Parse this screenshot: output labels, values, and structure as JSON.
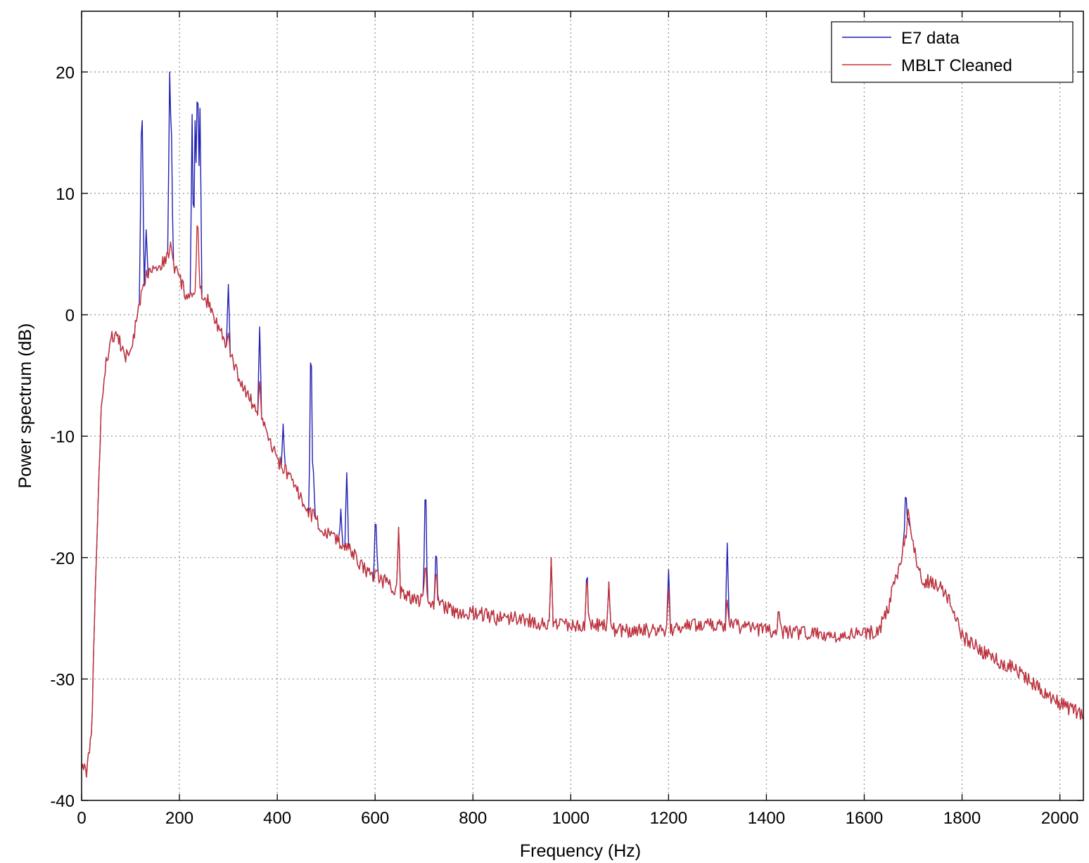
{
  "chart_data": {
    "type": "line",
    "title": "",
    "xlabel": "Frequency (Hz)",
    "ylabel": "Power spectrum (dB)",
    "xlim": [
      0,
      2048
    ],
    "ylim": [
      -40,
      25
    ],
    "x_ticks": [
      0,
      200,
      400,
      600,
      800,
      1000,
      1200,
      1400,
      1600,
      1800,
      2000
    ],
    "y_ticks": [
      -40,
      -30,
      -20,
      -10,
      0,
      10,
      20
    ],
    "x_tick_labels": [
      "0",
      "200",
      "400",
      "600",
      "800",
      "1000",
      "1200",
      "1400",
      "1600",
      "1800",
      "2000"
    ],
    "y_tick_labels": [
      "-40",
      "-30",
      "-20",
      "-10",
      "0",
      "10",
      "20"
    ],
    "grid": true,
    "legend_position": "top-right",
    "series": [
      {
        "name": "E7 data",
        "color": "#1f1fb4",
        "baseline": [
          [
            0,
            -37
          ],
          [
            10,
            -37.5
          ],
          [
            20,
            -35
          ],
          [
            30,
            -20
          ],
          [
            40,
            -8
          ],
          [
            50,
            -4
          ],
          [
            60,
            -2
          ],
          [
            70,
            -1.5
          ],
          [
            80,
            -2.5
          ],
          [
            90,
            -3.5
          ],
          [
            100,
            -3
          ],
          [
            110,
            -1
          ],
          [
            120,
            1
          ],
          [
            130,
            3
          ],
          [
            140,
            4
          ],
          [
            150,
            4
          ],
          [
            160,
            4
          ],
          [
            170,
            4.5
          ],
          [
            180,
            5
          ],
          [
            190,
            4
          ],
          [
            200,
            3
          ],
          [
            210,
            2
          ],
          [
            220,
            1
          ],
          [
            230,
            2
          ],
          [
            240,
            2
          ],
          [
            250,
            1.5
          ],
          [
            260,
            1
          ],
          [
            270,
            0
          ],
          [
            280,
            -1
          ],
          [
            290,
            -2
          ],
          [
            300,
            -3
          ],
          [
            310,
            -4
          ],
          [
            320,
            -5
          ],
          [
            330,
            -6
          ],
          [
            340,
            -6.5
          ],
          [
            350,
            -7.5
          ],
          [
            360,
            -8
          ],
          [
            370,
            -9
          ],
          [
            380,
            -10
          ],
          [
            390,
            -11
          ],
          [
            400,
            -12
          ],
          [
            420,
            -13
          ],
          [
            440,
            -14.5
          ],
          [
            460,
            -16
          ],
          [
            480,
            -17
          ],
          [
            500,
            -18
          ],
          [
            520,
            -18.5
          ],
          [
            540,
            -19
          ],
          [
            560,
            -20
          ],
          [
            580,
            -21
          ],
          [
            600,
            -21.5
          ],
          [
            620,
            -22
          ],
          [
            640,
            -22.5
          ],
          [
            660,
            -23
          ],
          [
            680,
            -23.5
          ],
          [
            700,
            -23.5
          ],
          [
            720,
            -24
          ],
          [
            740,
            -24
          ],
          [
            760,
            -24.5
          ],
          [
            800,
            -24.5
          ],
          [
            850,
            -25
          ],
          [
            900,
            -25
          ],
          [
            950,
            -25.5
          ],
          [
            1000,
            -25.5
          ],
          [
            1050,
            -25.5
          ],
          [
            1100,
            -26
          ],
          [
            1150,
            -26
          ],
          [
            1200,
            -26
          ],
          [
            1250,
            -25.5
          ],
          [
            1300,
            -25.5
          ],
          [
            1350,
            -25.7
          ],
          [
            1400,
            -26
          ],
          [
            1450,
            -26.2
          ],
          [
            1500,
            -26.3
          ],
          [
            1550,
            -26.5
          ],
          [
            1600,
            -26.3
          ],
          [
            1630,
            -26
          ],
          [
            1650,
            -24
          ],
          [
            1660,
            -22
          ],
          [
            1670,
            -21
          ],
          [
            1680,
            -19
          ],
          [
            1690,
            -17
          ],
          [
            1700,
            -19
          ],
          [
            1710,
            -21
          ],
          [
            1720,
            -22
          ],
          [
            1740,
            -22
          ],
          [
            1760,
            -22.5
          ],
          [
            1780,
            -24
          ],
          [
            1800,
            -26.5
          ],
          [
            1850,
            -28
          ],
          [
            1900,
            -29
          ],
          [
            1950,
            -30.5
          ],
          [
            2000,
            -32
          ],
          [
            2048,
            -33
          ]
        ],
        "peaks": [
          [
            122,
            13.5
          ],
          [
            124,
            16
          ],
          [
            132,
            7
          ],
          [
            180,
            20
          ],
          [
            183,
            18
          ],
          [
            226,
            16.5
          ],
          [
            232,
            16
          ],
          [
            237,
            22.6
          ],
          [
            242,
            17
          ],
          [
            300,
            2.5
          ],
          [
            364,
            -1
          ],
          [
            412,
            -9
          ],
          [
            469,
            0
          ],
          [
            474,
            -13
          ],
          [
            530,
            -16
          ],
          [
            542,
            -13
          ],
          [
            601,
            -16
          ],
          [
            648,
            -17.5
          ],
          [
            703,
            -12.5
          ],
          [
            725,
            -18.5
          ],
          [
            960,
            -20
          ],
          [
            1033,
            -20.5
          ],
          [
            1078,
            -22
          ],
          [
            1200,
            -21
          ],
          [
            1320,
            -18.8
          ],
          [
            1425,
            -24
          ],
          [
            1685,
            -14
          ]
        ]
      },
      {
        "name": "MBLT Cleaned",
        "color": "#c83232",
        "baseline": [
          [
            0,
            -37
          ],
          [
            10,
            -37.5
          ],
          [
            20,
            -35
          ],
          [
            30,
            -20
          ],
          [
            40,
            -8
          ],
          [
            50,
            -4
          ],
          [
            60,
            -2
          ],
          [
            70,
            -1.5
          ],
          [
            80,
            -2.5
          ],
          [
            90,
            -3.5
          ],
          [
            100,
            -3
          ],
          [
            110,
            -1
          ],
          [
            120,
            1
          ],
          [
            130,
            3
          ],
          [
            140,
            4
          ],
          [
            150,
            4
          ],
          [
            160,
            4
          ],
          [
            170,
            4.5
          ],
          [
            180,
            5
          ],
          [
            190,
            4
          ],
          [
            200,
            3
          ],
          [
            210,
            2
          ],
          [
            220,
            1
          ],
          [
            230,
            2
          ],
          [
            240,
            2
          ],
          [
            250,
            1.5
          ],
          [
            260,
            1
          ],
          [
            270,
            0
          ],
          [
            280,
            -1
          ],
          [
            290,
            -2
          ],
          [
            300,
            -3
          ],
          [
            310,
            -4
          ],
          [
            320,
            -5
          ],
          [
            330,
            -6
          ],
          [
            340,
            -6.5
          ],
          [
            350,
            -7.5
          ],
          [
            360,
            -8
          ],
          [
            370,
            -9
          ],
          [
            380,
            -10
          ],
          [
            390,
            -11
          ],
          [
            400,
            -12
          ],
          [
            420,
            -13
          ],
          [
            440,
            -14.5
          ],
          [
            460,
            -16
          ],
          [
            480,
            -17
          ],
          [
            500,
            -18
          ],
          [
            520,
            -18.5
          ],
          [
            540,
            -19
          ],
          [
            560,
            -20
          ],
          [
            580,
            -21
          ],
          [
            600,
            -21.5
          ],
          [
            620,
            -22
          ],
          [
            640,
            -22.5
          ],
          [
            660,
            -23
          ],
          [
            680,
            -23.5
          ],
          [
            700,
            -23.5
          ],
          [
            720,
            -24
          ],
          [
            740,
            -24
          ],
          [
            760,
            -24.5
          ],
          [
            800,
            -24.5
          ],
          [
            850,
            -25
          ],
          [
            900,
            -25
          ],
          [
            950,
            -25.5
          ],
          [
            1000,
            -25.5
          ],
          [
            1050,
            -25.5
          ],
          [
            1100,
            -26
          ],
          [
            1150,
            -26
          ],
          [
            1200,
            -26
          ],
          [
            1250,
            -25.5
          ],
          [
            1300,
            -25.5
          ],
          [
            1350,
            -25.7
          ],
          [
            1400,
            -26
          ],
          [
            1450,
            -26.2
          ],
          [
            1500,
            -26.3
          ],
          [
            1550,
            -26.5
          ],
          [
            1600,
            -26.3
          ],
          [
            1630,
            -26
          ],
          [
            1650,
            -24
          ],
          [
            1660,
            -22
          ],
          [
            1670,
            -21
          ],
          [
            1680,
            -19
          ],
          [
            1690,
            -17
          ],
          [
            1700,
            -19
          ],
          [
            1710,
            -21
          ],
          [
            1720,
            -22
          ],
          [
            1740,
            -22
          ],
          [
            1760,
            -22.5
          ],
          [
            1780,
            -24
          ],
          [
            1800,
            -26.5
          ],
          [
            1850,
            -28
          ],
          [
            1900,
            -29
          ],
          [
            1950,
            -30.5
          ],
          [
            2000,
            -32
          ],
          [
            2048,
            -33
          ]
        ],
        "peaks": [
          [
            182,
            6
          ],
          [
            237,
            9
          ],
          [
            300,
            -1.5
          ],
          [
            364,
            -5.5
          ],
          [
            474,
            -16
          ],
          [
            648,
            -17.5
          ],
          [
            703,
            -20
          ],
          [
            725,
            -20.5
          ],
          [
            960,
            -20
          ],
          [
            1033,
            -21
          ],
          [
            1078,
            -22
          ],
          [
            1200,
            -22.5
          ],
          [
            1320,
            -23.5
          ],
          [
            1425,
            -24
          ],
          [
            1690,
            -16
          ]
        ]
      }
    ]
  }
}
